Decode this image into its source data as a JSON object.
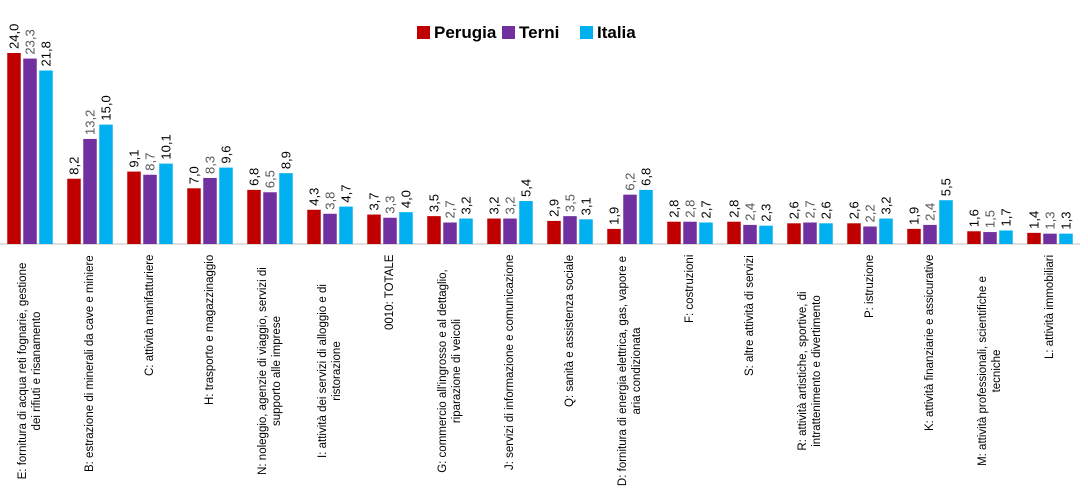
{
  "chart_data": {
    "type": "bar",
    "categories": [
      "E: fornitura di acqua reti fognarie, gestione dei rifiuti e risanamento",
      "B: estrazione di minerali da cave e miniere",
      "C: attività manifatturiere",
      "H: trasporto e magazzinaggio",
      "N: noleggio, agenzie di viaggio, servizi di supporto alle imprese",
      "I: attività dei servizi di alloggio e di ristorazione",
      "0010: TOTALE",
      "G: commercio all'ingrosso e al dettaglio, riparazione di veicoli",
      "J: servizi di informazione e comunicazione",
      "Q: sanità e assistenza sociale",
      "D: fornitura di energia elettrica, gas, vapore e aria condizionata",
      "F: costruzioni",
      "S: altre attività di servizi",
      "R: attività artistiche, sportive, di intrattenimento e divertimento",
      "P: istruzione",
      "K: attività finanziarie e assicurative",
      "M: attività professionali, scientifiche e tecniche",
      "L: attività immobiliari"
    ],
    "series": [
      {
        "name": "Perugia",
        "color": "#c00000",
        "values": [
          24.0,
          8.2,
          9.1,
          7.0,
          6.8,
          4.3,
          3.7,
          3.5,
          3.2,
          2.9,
          1.9,
          2.8,
          2.8,
          2.6,
          2.6,
          1.9,
          1.6,
          1.4
        ],
        "value_labels": [
          "24,0",
          "8,2",
          "9,1",
          "7,0",
          "6,8",
          "4,3",
          "3,7",
          "3,5",
          "3,2",
          "2,9",
          "1,9",
          "2,8",
          "2,8",
          "2,6",
          "2,6",
          "1,9",
          "1,6",
          "1,4"
        ]
      },
      {
        "name": "Terni",
        "color": "#7030a0",
        "values": [
          23.3,
          13.2,
          8.7,
          8.3,
          6.5,
          3.8,
          3.3,
          2.7,
          3.2,
          3.5,
          6.2,
          2.8,
          2.4,
          2.7,
          2.2,
          2.4,
          1.5,
          1.3
        ],
        "value_labels": [
          "23,3",
          "13,2",
          "8,7",
          "8,3",
          "6,5",
          "3,8",
          "3,3",
          "2,7",
          "3,2",
          "3,5",
          "6,2",
          "2,8",
          "2,4",
          "2,7",
          "2,2",
          "2,4",
          "1,5",
          "1,3"
        ]
      },
      {
        "name": "Italia",
        "color": "#00b0f0",
        "values": [
          21.8,
          15.0,
          10.1,
          9.6,
          8.9,
          4.7,
          4.0,
          3.2,
          5.4,
          3.1,
          6.8,
          2.7,
          2.3,
          2.6,
          3.2,
          5.5,
          1.7,
          1.3
        ],
        "value_labels": [
          "21,8",
          "15,0",
          "10,1",
          "9,6",
          "8,9",
          "4,7",
          "4,0",
          "3,2",
          "5,4",
          "3,1",
          "6,8",
          "2,7",
          "2,3",
          "2,6",
          "3,2",
          "5,5",
          "1,7",
          "1,3"
        ]
      }
    ],
    "ylim": [
      0,
      24
    ],
    "legend": "top"
  }
}
